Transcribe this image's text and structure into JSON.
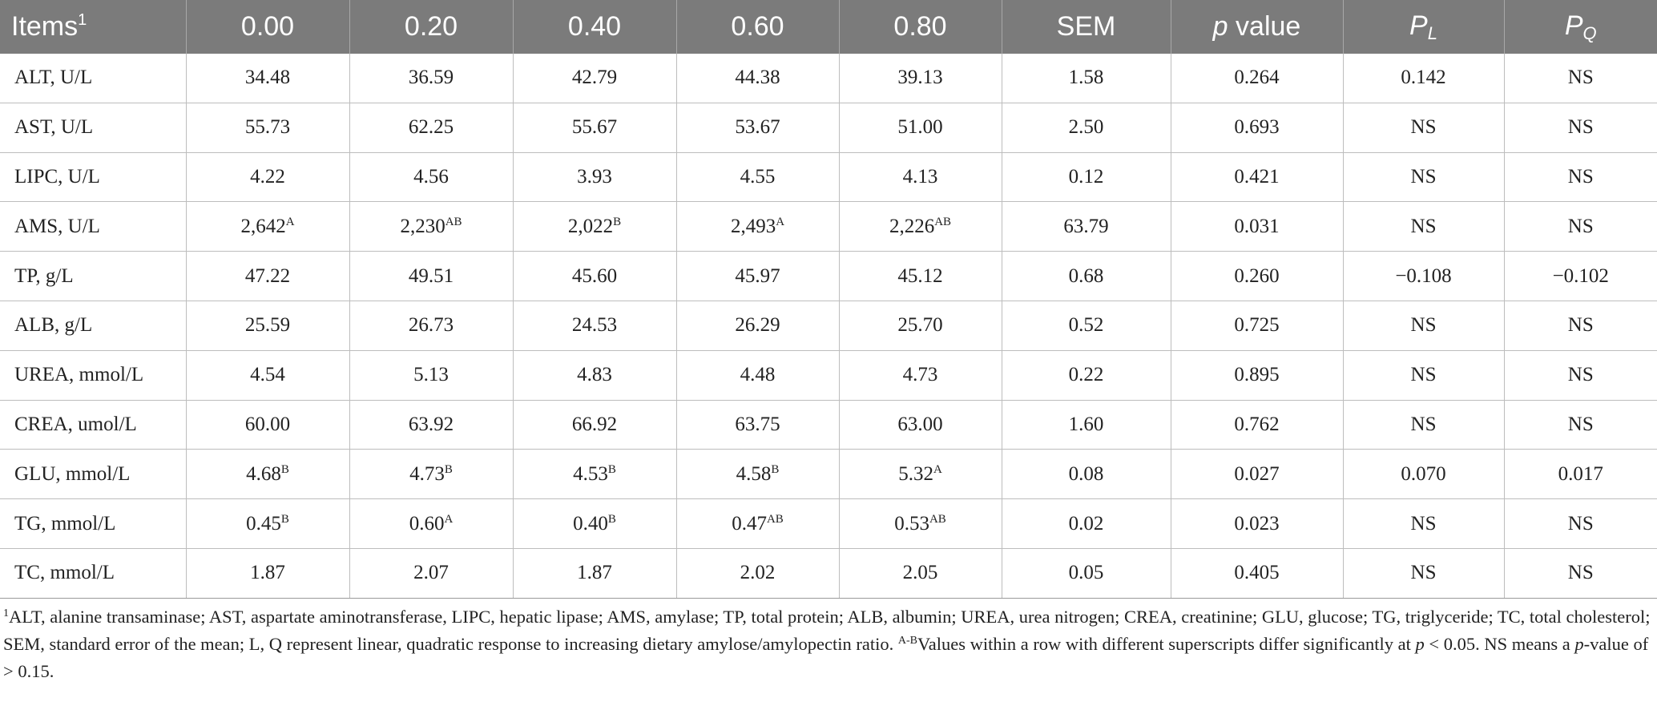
{
  "table": {
    "headers": {
      "items": "Items",
      "items_sup": "1",
      "col1": "0.00",
      "col2": "0.20",
      "col3": "0.40",
      "col4": "0.60",
      "col5": "0.80",
      "sem": "SEM",
      "pvalue_italic": "p",
      "pvalue_text": " value",
      "pl_main": "P",
      "pl_sub": "L",
      "pq_main": "P",
      "pq_sub": "Q"
    },
    "rows": [
      {
        "item": "ALT, U/L",
        "v": [
          {
            "n": "34.48",
            "s": ""
          },
          {
            "n": "36.59",
            "s": ""
          },
          {
            "n": "42.79",
            "s": ""
          },
          {
            "n": "44.38",
            "s": ""
          },
          {
            "n": "39.13",
            "s": ""
          }
        ],
        "sem": "1.58",
        "p": "0.264",
        "pl": "0.142",
        "pq": "NS"
      },
      {
        "item": "AST, U/L",
        "v": [
          {
            "n": "55.73",
            "s": ""
          },
          {
            "n": "62.25",
            "s": ""
          },
          {
            "n": "55.67",
            "s": ""
          },
          {
            "n": "53.67",
            "s": ""
          },
          {
            "n": "51.00",
            "s": ""
          }
        ],
        "sem": "2.50",
        "p": "0.693",
        "pl": "NS",
        "pq": "NS"
      },
      {
        "item": "LIPC, U/L",
        "v": [
          {
            "n": "4.22",
            "s": ""
          },
          {
            "n": "4.56",
            "s": ""
          },
          {
            "n": "3.93",
            "s": ""
          },
          {
            "n": "4.55",
            "s": ""
          },
          {
            "n": "4.13",
            "s": ""
          }
        ],
        "sem": "0.12",
        "p": "0.421",
        "pl": "NS",
        "pq": "NS"
      },
      {
        "item": "AMS, U/L",
        "v": [
          {
            "n": "2,642",
            "s": "A"
          },
          {
            "n": "2,230",
            "s": "AB"
          },
          {
            "n": "2,022",
            "s": "B"
          },
          {
            "n": "2,493",
            "s": "A"
          },
          {
            "n": "2,226",
            "s": "AB"
          }
        ],
        "sem": "63.79",
        "p": "0.031",
        "pl": "NS",
        "pq": "NS"
      },
      {
        "item": "TP, g/L",
        "v": [
          {
            "n": "47.22",
            "s": ""
          },
          {
            "n": "49.51",
            "s": ""
          },
          {
            "n": "45.60",
            "s": ""
          },
          {
            "n": "45.97",
            "s": ""
          },
          {
            "n": "45.12",
            "s": ""
          }
        ],
        "sem": "0.68",
        "p": "0.260",
        "pl": "−0.108",
        "pq": "−0.102"
      },
      {
        "item": "ALB, g/L",
        "v": [
          {
            "n": "25.59",
            "s": ""
          },
          {
            "n": "26.73",
            "s": ""
          },
          {
            "n": "24.53",
            "s": ""
          },
          {
            "n": "26.29",
            "s": ""
          },
          {
            "n": "25.70",
            "s": ""
          }
        ],
        "sem": "0.52",
        "p": "0.725",
        "pl": "NS",
        "pq": "NS"
      },
      {
        "item": "UREA, mmol/L",
        "v": [
          {
            "n": "4.54",
            "s": ""
          },
          {
            "n": "5.13",
            "s": ""
          },
          {
            "n": "4.83",
            "s": ""
          },
          {
            "n": "4.48",
            "s": ""
          },
          {
            "n": "4.73",
            "s": ""
          }
        ],
        "sem": "0.22",
        "p": "0.895",
        "pl": "NS",
        "pq": "NS"
      },
      {
        "item": "CREA, umol/L",
        "v": [
          {
            "n": "60.00",
            "s": ""
          },
          {
            "n": "63.92",
            "s": ""
          },
          {
            "n": "66.92",
            "s": ""
          },
          {
            "n": "63.75",
            "s": ""
          },
          {
            "n": "63.00",
            "s": ""
          }
        ],
        "sem": "1.60",
        "p": "0.762",
        "pl": "NS",
        "pq": "NS"
      },
      {
        "item": "GLU, mmol/L",
        "v": [
          {
            "n": "4.68",
            "s": "B"
          },
          {
            "n": "4.73",
            "s": "B"
          },
          {
            "n": "4.53",
            "s": "B"
          },
          {
            "n": "4.58",
            "s": "B"
          },
          {
            "n": "5.32",
            "s": "A"
          }
        ],
        "sem": "0.08",
        "p": "0.027",
        "pl": "0.070",
        "pq": "0.017"
      },
      {
        "item": "TG, mmol/L",
        "v": [
          {
            "n": "0.45",
            "s": "B"
          },
          {
            "n": "0.60",
            "s": "A"
          },
          {
            "n": "0.40",
            "s": "B"
          },
          {
            "n": "0.47",
            "s": "AB"
          },
          {
            "n": "0.53",
            "s": "AB"
          }
        ],
        "sem": "0.02",
        "p": "0.023",
        "pl": "NS",
        "pq": "NS"
      },
      {
        "item": "TC, mmol/L",
        "v": [
          {
            "n": "1.87",
            "s": ""
          },
          {
            "n": "2.07",
            "s": ""
          },
          {
            "n": "1.87",
            "s": ""
          },
          {
            "n": "2.02",
            "s": ""
          },
          {
            "n": "2.05",
            "s": ""
          }
        ],
        "sem": "0.05",
        "p": "0.405",
        "pl": "NS",
        "pq": "NS"
      }
    ]
  },
  "footnote": {
    "sup1": "1",
    "text1": "ALT, alanine transaminase; AST, aspartate aminotransferase, LIPC, hepatic lipase; AMS, amylase; TP, total protein; ALB, albumin; UREA, urea nitrogen; CREA, creatinine; GLU, glucose; TG, triglyceride; TC, total cholesterol; SEM, standard error of the mean; L, Q represent linear, quadratic response to increasing dietary amylose/amylopectin ratio. ",
    "sup2": "A-B",
    "text2": "Values within a row with different superscripts differ significantly at ",
    "p1": "p",
    "text3": " < 0.05. NS means a ",
    "p2": "p",
    "text4": "-value of > 0.15."
  }
}
